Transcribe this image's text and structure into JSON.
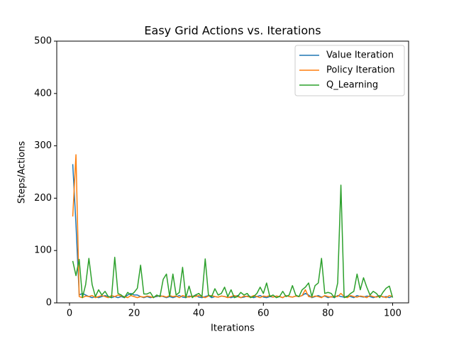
{
  "chart_data": {
    "type": "line",
    "title": "Easy Grid Actions vs. Iterations",
    "x_label": "Iterations",
    "y_label": "Steps/Actions",
    "x": [
      1,
      2,
      3,
      4,
      5,
      6,
      7,
      8,
      9,
      10,
      11,
      12,
      13,
      14,
      15,
      16,
      17,
      18,
      19,
      20,
      21,
      22,
      23,
      24,
      25,
      26,
      27,
      28,
      29,
      30,
      31,
      32,
      33,
      34,
      35,
      36,
      37,
      38,
      39,
      40,
      41,
      42,
      43,
      44,
      45,
      46,
      47,
      48,
      49,
      50,
      51,
      52,
      53,
      54,
      55,
      56,
      57,
      58,
      59,
      60,
      61,
      62,
      63,
      64,
      65,
      66,
      67,
      68,
      69,
      70,
      71,
      72,
      73,
      74,
      75,
      76,
      77,
      78,
      79,
      80,
      81,
      82,
      83,
      84,
      85,
      86,
      87,
      88,
      89,
      90,
      91,
      92,
      93,
      94,
      95,
      96,
      97,
      98,
      99,
      100
    ],
    "series": [
      {
        "name": "Value Iteration",
        "color": "#1f77b4",
        "values": [
          265,
          150,
          15,
          18,
          15,
          12,
          10,
          12,
          10,
          12,
          14,
          12,
          10,
          12,
          10,
          12,
          10,
          15,
          18,
          15,
          15,
          12,
          10,
          12,
          10,
          11,
          12,
          14,
          12,
          10,
          12,
          10,
          12,
          14,
          11,
          10,
          13,
          12,
          15,
          11,
          10,
          12,
          14,
          10,
          12,
          11,
          13,
          12,
          11,
          10,
          12,
          14,
          10,
          11,
          13,
          12,
          10,
          12,
          14,
          11,
          10,
          12,
          11,
          13,
          12,
          10,
          14,
          12,
          11,
          13,
          12,
          14,
          18,
          15,
          10,
          12,
          14,
          11,
          13,
          10,
          12,
          10,
          14,
          12,
          11,
          13,
          12,
          10,
          14,
          12,
          11,
          13,
          12,
          10,
          12,
          14,
          11,
          12,
          10,
          13
        ]
      },
      {
        "name": "Policy Iteration",
        "color": "#ff7f0e",
        "values": [
          165,
          283,
          12,
          10,
          13,
          12,
          14,
          10,
          12,
          14,
          12,
          10,
          14,
          12,
          15,
          13,
          12,
          10,
          14,
          12,
          10,
          12,
          11,
          13,
          12,
          10,
          14,
          12,
          13,
          11,
          14,
          12,
          13,
          10,
          14,
          12,
          11,
          13,
          12,
          14,
          12,
          10,
          13,
          14,
          12,
          11,
          13,
          12,
          10,
          12,
          14,
          12,
          10,
          13,
          12,
          11,
          14,
          12,
          10,
          13,
          12,
          14,
          11,
          13,
          12,
          10,
          14,
          12,
          11,
          13,
          12,
          14,
          25,
          12,
          11,
          13,
          12,
          10,
          14,
          12,
          11,
          13,
          12,
          18,
          12,
          10,
          14,
          12,
          11,
          13,
          12,
          10,
          14,
          12,
          11,
          13,
          12,
          10,
          14,
          12
        ]
      },
      {
        "name": "Q_Learning",
        "color": "#2ca02c",
        "values": [
          80,
          52,
          83,
          10,
          35,
          85,
          35,
          12,
          25,
          15,
          22,
          12,
          10,
          87,
          18,
          15,
          10,
          20,
          15,
          20,
          28,
          72,
          17,
          17,
          20,
          10,
          15,
          12,
          45,
          55,
          12,
          55,
          15,
          20,
          68,
          10,
          32,
          10,
          15,
          18,
          12,
          84,
          15,
          12,
          27,
          15,
          18,
          30,
          12,
          25,
          10,
          12,
          20,
          15,
          18,
          10,
          12,
          18,
          30,
          18,
          38,
          12,
          15,
          10,
          12,
          22,
          12,
          15,
          33,
          15,
          12,
          25,
          30,
          38,
          12,
          33,
          38,
          85,
          18,
          20,
          18,
          10,
          38,
          225,
          10,
          12,
          18,
          22,
          55,
          25,
          48,
          30,
          15,
          22,
          18,
          10,
          20,
          28,
          32,
          10
        ]
      }
    ],
    "xlim": [
      -3.95,
      104.95
    ],
    "ylim": [
      0,
      500
    ],
    "xticks": [
      0,
      20,
      40,
      60,
      80,
      100
    ],
    "yticks": [
      0,
      100,
      200,
      300,
      400,
      500
    ],
    "legend": "upper right"
  }
}
